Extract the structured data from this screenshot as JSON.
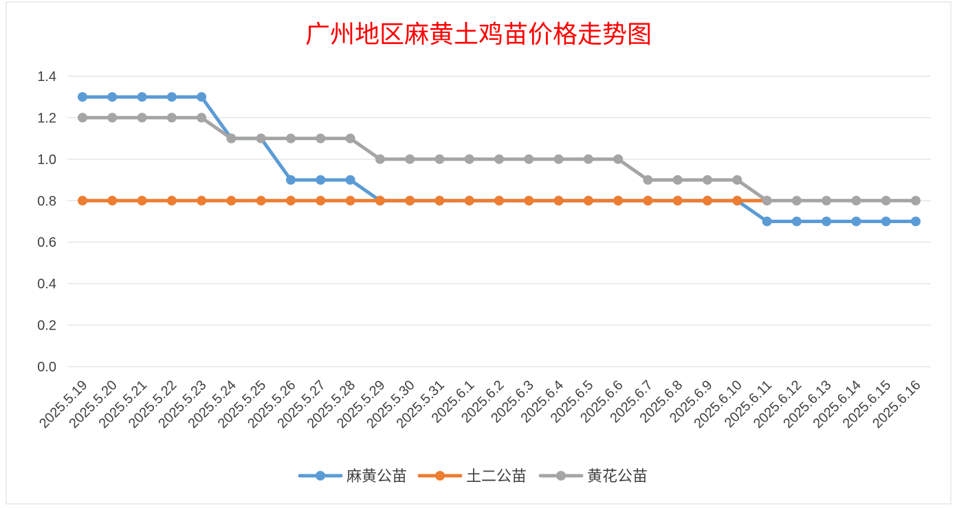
{
  "chart_data": {
    "type": "line",
    "title": "广州地区麻黄土鸡苗价格走势图",
    "xlabel": "",
    "ylabel": "",
    "ylim": [
      0,
      1.4
    ],
    "yticks": [
      "0.0",
      "0.2",
      "0.4",
      "0.6",
      "0.8",
      "1.0",
      "1.2",
      "1.4"
    ],
    "ytick_values": [
      0,
      0.2,
      0.4,
      0.6,
      0.8,
      1.0,
      1.2,
      1.4
    ],
    "grid": true,
    "legend_position": "bottom",
    "categories": [
      "2025.5.19",
      "2025.5.20",
      "2025.5.21",
      "2025.5.22",
      "2025.5.23",
      "2025.5.24",
      "2025.5.25",
      "2025.5.26",
      "2025.5.27",
      "2025.5.28",
      "2025.5.29",
      "2025.5.30",
      "2025.5.31",
      "2025.6.1",
      "2025.6.2",
      "2025.6.3",
      "2025.6.4",
      "2025.6.5",
      "2025.6.6",
      "2025.6.7",
      "2025.6.8",
      "2025.6.9",
      "2025.6.10",
      "2025.6.11",
      "2025.6.12",
      "2025.6.13",
      "2025.6.14",
      "2025.6.15",
      "2025.6.16"
    ],
    "series": [
      {
        "name": "麻黄公苗",
        "color": "#5B9BD5",
        "values": [
          1.3,
          1.3,
          1.3,
          1.3,
          1.3,
          1.1,
          1.1,
          0.9,
          0.9,
          0.9,
          0.8,
          0.8,
          0.8,
          0.8,
          0.8,
          0.8,
          0.8,
          0.8,
          0.8,
          0.8,
          0.8,
          0.8,
          0.8,
          0.7,
          0.7,
          0.7,
          0.7,
          0.7,
          0.7
        ]
      },
      {
        "name": "土二公苗",
        "color": "#ED7D31",
        "values": [
          0.8,
          0.8,
          0.8,
          0.8,
          0.8,
          0.8,
          0.8,
          0.8,
          0.8,
          0.8,
          0.8,
          0.8,
          0.8,
          0.8,
          0.8,
          0.8,
          0.8,
          0.8,
          0.8,
          0.8,
          0.8,
          0.8,
          0.8,
          0.8,
          null,
          null,
          null,
          null,
          null
        ]
      },
      {
        "name": "黄花公苗",
        "color": "#A5A5A5",
        "values": [
          1.2,
          1.2,
          1.2,
          1.2,
          1.2,
          1.1,
          1.1,
          1.1,
          1.1,
          1.1,
          1.0,
          1.0,
          1.0,
          1.0,
          1.0,
          1.0,
          1.0,
          1.0,
          1.0,
          0.9,
          0.9,
          0.9,
          0.9,
          0.8,
          0.8,
          0.8,
          0.8,
          0.8,
          0.8
        ]
      }
    ]
  },
  "style": {
    "title_color": "#FF0000",
    "grid_color": "#D9D9D9",
    "axis_text_color": "#404040",
    "border_color": "#D9D9D9"
  }
}
